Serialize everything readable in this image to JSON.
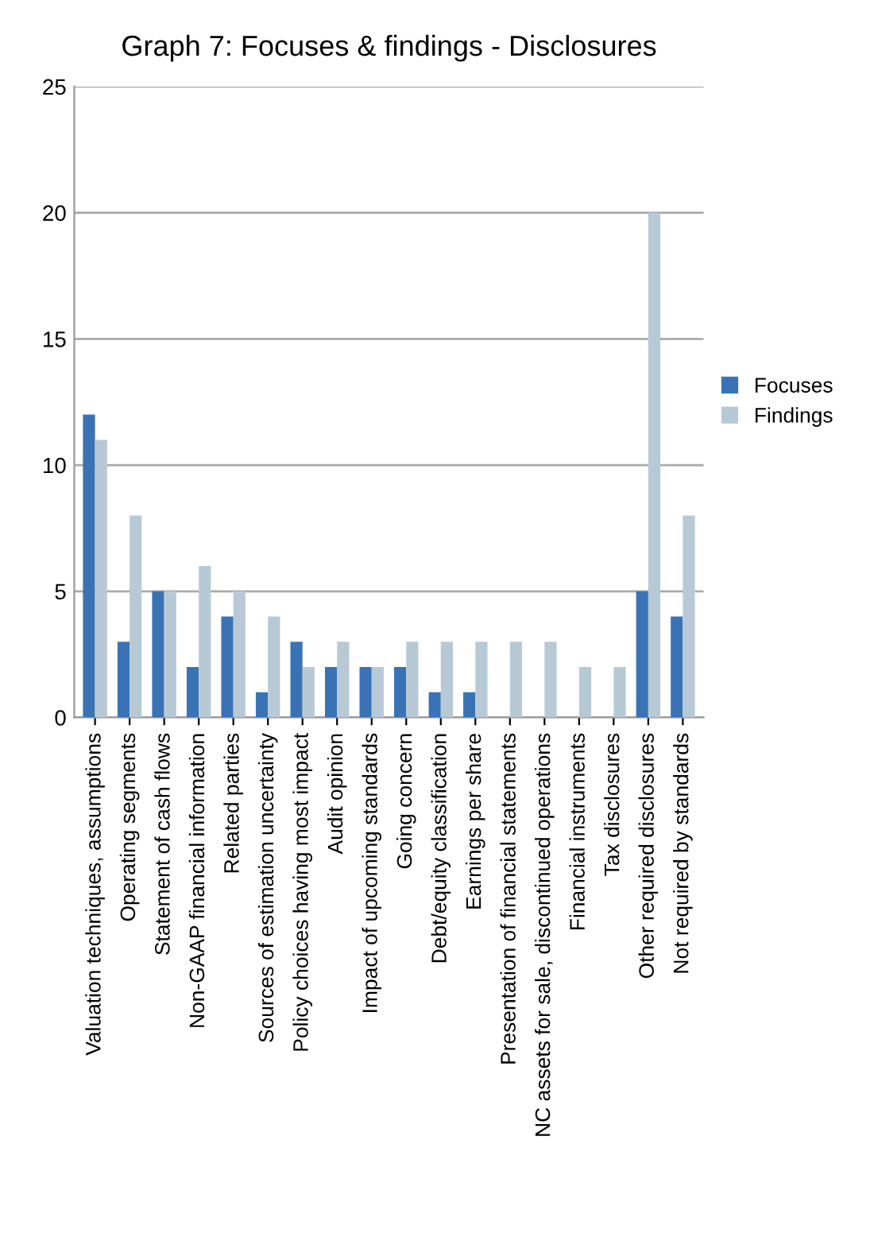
{
  "chart_data": {
    "type": "bar",
    "title": "Graph 7: Focuses & findings - Disclosures",
    "categories": [
      "Valuation techniques, assumptions",
      "Operating segments",
      "Statement of cash flows",
      "Non-GAAP financial information",
      "Related parties",
      "Sources of estimation uncertainty",
      "Policy choices having most impact",
      "Audit opinion",
      "Impact of upcoming standards",
      "Going concern",
      "Debt/equity classification",
      "Earnings per share",
      "Presentation of financial statements",
      "NC assets for sale, discontinued operations",
      "Financial instruments",
      "Tax disclosures",
      "Other required disclosures",
      "Not required by standards"
    ],
    "series": [
      {
        "name": "Focuses",
        "color": "#3a73b5",
        "values": [
          12,
          3,
          5,
          2,
          4,
          1,
          3,
          2,
          2,
          2,
          1,
          1,
          0,
          0,
          0,
          0,
          5,
          4
        ]
      },
      {
        "name": "Findings",
        "color": "#b8c9d6",
        "values": [
          11,
          8,
          5,
          6,
          5,
          4,
          2,
          3,
          2,
          3,
          3,
          3,
          3,
          3,
          2,
          2,
          20,
          8
        ]
      }
    ],
    "ylim": [
      0,
      25
    ],
    "yticks": [
      0,
      5,
      10,
      15,
      20,
      25
    ],
    "grid": "y",
    "legend": "right"
  }
}
